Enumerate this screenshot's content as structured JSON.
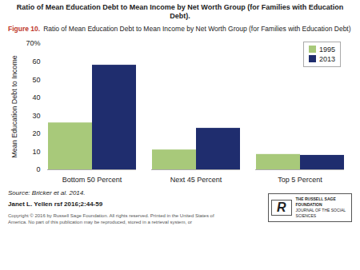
{
  "chart_data": {
    "type": "bar",
    "title": "Ratio of Mean Education Debt to Mean Income by Net Worth Group (for Families with Education Debt).",
    "subtitle": "Ratio of Mean Education Debt to Mean Income by Net Worth Group (for Families with Education Debt)",
    "annotations": [
      "Figure 10.",
      "Source: Bricker et al. 2014.",
      "Janet L. Yellen rsf 2016;2:44-59",
      "Copyright © 2016 by Russell Sage Foundation. All rights reserved. Printed in the United States of\nAmerica. No part of this publication may be reproduced, stored in a retrieval system, or",
      "R",
      "THE RUSSELL SAGE FOUNDATION",
      "JOURNAL OF THE SOCIAL SCIENCES"
    ],
    "categories": [
      "Bottom 50 Percent",
      "Next 45 Percent",
      "Top 5 Percent"
    ],
    "series": [
      {
        "name": "1995",
        "color": "#a8c97a",
        "values": [
          26,
          11,
          8.5
        ]
      },
      {
        "name": "2013",
        "color": "#1f2d6e",
        "values": [
          58,
          23,
          8
        ]
      }
    ],
    "y_label": "Mean Education Debt to Income",
    "ylim": [
      0,
      70
    ],
    "yticks": [
      0,
      10,
      20,
      30,
      40,
      50,
      60,
      {
        "value": 70,
        "label": "70%"
      }
    ],
    "grid": false,
    "legend": "upper right"
  }
}
